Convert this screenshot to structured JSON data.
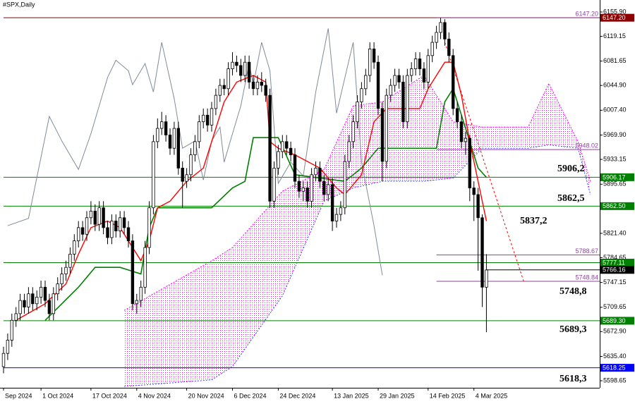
{
  "chart_data": {
    "type": "candlestick",
    "title": "#SPX,Daily",
    "ylim": [
      5588,
      6174
    ],
    "yticks": [
      {
        "value": 6155.9,
        "label": "6155.90"
      },
      {
        "value": 6119.15,
        "label": "6119.15"
      },
      {
        "value": 6081.65,
        "label": "6081.65"
      },
      {
        "value": 6044.9,
        "label": "6044.90"
      },
      {
        "value": 6007.4,
        "label": "6007.40"
      },
      {
        "value": 5969.9,
        "label": "5969.90"
      },
      {
        "value": 5933.15,
        "label": "5933.15"
      },
      {
        "value": 5895.65,
        "label": "5895.65"
      },
      {
        "value": 5821.4,
        "label": "5821.40"
      },
      {
        "value": 5784.65,
        "label": "5784.65"
      },
      {
        "value": 5747.15,
        "label": "5747.15"
      },
      {
        "value": 5709.65,
        "label": "5709.65"
      },
      {
        "value": 5672.9,
        "label": "5672.90"
      },
      {
        "value": 5635.4,
        "label": "5635.40"
      },
      {
        "value": 5598.65,
        "label": "5598.65"
      }
    ],
    "xticks": [
      {
        "value": 0,
        "label": "Sep 2024"
      },
      {
        "value": 9,
        "label": "1 Oct 2024"
      },
      {
        "value": 21,
        "label": "17 Oct 2024"
      },
      {
        "value": 32,
        "label": "4 Nov 2024"
      },
      {
        "value": 44,
        "label": "20 Nov 2024"
      },
      {
        "value": 55,
        "label": "6 Dec 2024"
      },
      {
        "value": 66,
        "label": "24 Dec 2024"
      },
      {
        "value": 79,
        "label": "13 Jan 2025"
      },
      {
        "value": 90,
        "label": "29 Jan 2025"
      },
      {
        "value": 102,
        "label": "14 Feb 2025"
      },
      {
        "value": 113,
        "label": "4 Mar 2025"
      }
    ],
    "ohlc": [
      [
        5620,
        5650,
        5610,
        5640
      ],
      [
        5640,
        5670,
        5630,
        5660
      ],
      [
        5660,
        5700,
        5650,
        5690
      ],
      [
        5690,
        5710,
        5680,
        5700
      ],
      [
        5700,
        5730,
        5690,
        5720
      ],
      [
        5720,
        5730,
        5700,
        5710
      ],
      [
        5710,
        5740,
        5700,
        5730
      ],
      [
        5730,
        5740,
        5705,
        5715
      ],
      [
        5715,
        5735,
        5705,
        5725
      ],
      [
        5725,
        5750,
        5715,
        5740
      ],
      [
        5740,
        5750,
        5710,
        5720
      ],
      [
        5720,
        5730,
        5690,
        5700
      ],
      [
        5700,
        5740,
        5690,
        5730
      ],
      [
        5730,
        5755,
        5720,
        5745
      ],
      [
        5745,
        5770,
        5735,
        5760
      ],
      [
        5760,
        5780,
        5750,
        5770
      ],
      [
        5770,
        5800,
        5760,
        5790
      ],
      [
        5790,
        5820,
        5780,
        5810
      ],
      [
        5810,
        5840,
        5800,
        5830
      ],
      [
        5830,
        5840,
        5810,
        5820
      ],
      [
        5820,
        5855,
        5810,
        5845
      ],
      [
        5845,
        5870,
        5835,
        5855
      ],
      [
        5855,
        5865,
        5825,
        5835
      ],
      [
        5835,
        5870,
        5825,
        5860
      ],
      [
        5860,
        5870,
        5820,
        5830
      ],
      [
        5830,
        5840,
        5805,
        5815
      ],
      [
        5815,
        5850,
        5805,
        5840
      ],
      [
        5840,
        5850,
        5815,
        5825
      ],
      [
        5825,
        5855,
        5815,
        5845
      ],
      [
        5845,
        5855,
        5820,
        5830
      ],
      [
        5830,
        5840,
        5800,
        5810
      ],
      [
        5810,
        5820,
        5705,
        5715
      ],
      [
        5715,
        5730,
        5700,
        5720
      ],
      [
        5720,
        5750,
        5710,
        5740
      ],
      [
        5740,
        5810,
        5730,
        5800
      ],
      [
        5800,
        5870,
        5790,
        5860
      ],
      [
        5860,
        5970,
        5850,
        5960
      ],
      [
        5960,
        5995,
        5950,
        5980
      ],
      [
        5980,
        6005,
        5970,
        5990
      ],
      [
        5990,
        6000,
        5960,
        5970
      ],
      [
        5970,
        5980,
        5940,
        5950
      ],
      [
        5950,
        5990,
        5940,
        5980
      ],
      [
        5980,
        5990,
        5910,
        5920
      ],
      [
        5920,
        5930,
        5860,
        5900
      ],
      [
        5900,
        5920,
        5890,
        5910
      ],
      [
        5910,
        5950,
        5900,
        5940
      ],
      [
        5940,
        5970,
        5930,
        5960
      ],
      [
        5960,
        6000,
        5950,
        5990
      ],
      [
        5990,
        6010,
        5980,
        6000
      ],
      [
        6000,
        6010,
        5975,
        5985
      ],
      [
        5985,
        6020,
        5975,
        6010
      ],
      [
        6010,
        6040,
        6000,
        6030
      ],
      [
        6030,
        6055,
        6020,
        6045
      ],
      [
        6045,
        6055,
        6030,
        6040
      ],
      [
        6040,
        6080,
        6030,
        6070
      ],
      [
        6070,
        6095,
        6060,
        6080
      ],
      [
        6080,
        6090,
        6065,
        6075
      ],
      [
        6075,
        6085,
        6050,
        6060
      ],
      [
        6060,
        6090,
        6050,
        6080
      ],
      [
        6080,
        6090,
        6040,
        6050
      ],
      [
        6050,
        6060,
        6030,
        6040
      ],
      [
        6040,
        6060,
        6030,
        6050
      ],
      [
        6050,
        6065,
        6035,
        6045
      ],
      [
        6045,
        6055,
        6020,
        6030
      ],
      [
        6030,
        6040,
        5860,
        5870
      ],
      [
        5870,
        5930,
        5860,
        5920
      ],
      [
        5920,
        5955,
        5910,
        5945
      ],
      [
        5945,
        5970,
        5935,
        5960
      ],
      [
        5960,
        5970,
        5940,
        5950
      ],
      [
        5950,
        5960,
        5930,
        5940
      ],
      [
        5940,
        5950,
        5890,
        5900
      ],
      [
        5900,
        5910,
        5875,
        5885
      ],
      [
        5885,
        5900,
        5870,
        5890
      ],
      [
        5890,
        5900,
        5860,
        5870
      ],
      [
        5870,
        5920,
        5860,
        5910
      ],
      [
        5910,
        5930,
        5900,
        5920
      ],
      [
        5920,
        5930,
        5890,
        5900
      ],
      [
        5900,
        5910,
        5870,
        5880
      ],
      [
        5880,
        5905,
        5870,
        5895
      ],
      [
        5895,
        5905,
        5825,
        5840
      ],
      [
        5840,
        5860,
        5830,
        5850
      ],
      [
        5850,
        5870,
        5840,
        5860
      ],
      [
        5860,
        5940,
        5850,
        5930
      ],
      [
        5930,
        5970,
        5920,
        5960
      ],
      [
        5960,
        6000,
        5950,
        5990
      ],
      [
        5990,
        6030,
        5980,
        6020
      ],
      [
        6020,
        6050,
        6010,
        6040
      ],
      [
        6040,
        6070,
        6030,
        6060
      ],
      [
        6060,
        6110,
        6050,
        6100
      ],
      [
        6100,
        6110,
        6070,
        6080
      ],
      [
        6080,
        6090,
        6000,
        6010
      ],
      [
        6010,
        6020,
        5900,
        5930
      ],
      [
        5930,
        6040,
        5920,
        6030
      ],
      [
        6030,
        6055,
        6020,
        6045
      ],
      [
        6045,
        6070,
        6035,
        6060
      ],
      [
        6060,
        6070,
        6040,
        6050
      ],
      [
        6050,
        6060,
        5980,
        5990
      ],
      [
        5990,
        6070,
        5980,
        6060
      ],
      [
        6060,
        6080,
        6050,
        6070
      ],
      [
        6070,
        6095,
        6060,
        6085
      ],
      [
        6085,
        6095,
        6060,
        6070
      ],
      [
        6070,
        6080,
        6040,
        6050
      ],
      [
        6050,
        6100,
        6040,
        6090
      ],
      [
        6090,
        6120,
        6080,
        6110
      ],
      [
        6110,
        6135,
        6100,
        6125
      ],
      [
        6125,
        6147,
        6115,
        6140
      ],
      [
        6140,
        6145,
        6105,
        6115
      ],
      [
        6115,
        6125,
        6080,
        6090
      ],
      [
        6090,
        6100,
        6000,
        6010
      ],
      [
        6010,
        6020,
        5980,
        5990
      ],
      [
        5990,
        6000,
        5950,
        5960
      ],
      [
        5960,
        5975,
        5940,
        5965
      ],
      [
        5965,
        5970,
        5870,
        5890
      ],
      [
        5890,
        5900,
        5840,
        5880
      ],
      [
        5880,
        5890,
        5765,
        5845
      ],
      [
        5845,
        5850,
        5710,
        5740
      ],
      [
        5740,
        5790,
        5672,
        5766
      ]
    ],
    "cloud": {
      "color_a": "#ff00ff",
      "color_b": "#4040ff",
      "x": [
        29,
        50,
        55,
        67,
        77,
        84,
        91,
        101,
        108,
        115,
        126,
        131,
        138,
        141
      ],
      "span_a": [
        5705,
        5780,
        5800,
        5885,
        5918,
        6014,
        6020,
        6060,
        5990,
        5982,
        5982,
        6048,
        5960,
        5900
      ],
      "span_b": [
        5590,
        5600,
        5620,
        5727,
        5870,
        5890,
        5900,
        5900,
        5905,
        5950,
        5950,
        5955,
        5950,
        5880
      ]
    },
    "lines": [
      {
        "color": "#808a98",
        "width": 1,
        "x": [
          1,
          6,
          11,
          14,
          18,
          21,
          25,
          27,
          30,
          31,
          34,
          36,
          38,
          41,
          43,
          46,
          48,
          50,
          52,
          53,
          55,
          57,
          59,
          60,
          62,
          64,
          66,
          69,
          72,
          75,
          78,
          80,
          84,
          86,
          89,
          91
        ],
        "values": [
          5833,
          5844,
          5998,
          5961,
          5918,
          5972,
          6057,
          6083,
          6067,
          6046,
          6078,
          6035,
          6110,
          6025,
          5950,
          5961,
          5902,
          5961,
          5982,
          5929,
          5972,
          6014,
          6078,
          6046,
          6110,
          6067,
          5897,
          5929,
          5908,
          6035,
          6131,
          6003,
          6110,
          5929,
          5833,
          5758
        ]
      },
      {
        "color": "#008000",
        "width": 1.6,
        "x": [
          10,
          18,
          22,
          28,
          33,
          35,
          37,
          50,
          55,
          58,
          60,
          66,
          70,
          82,
          86,
          90,
          104,
          106,
          108,
          110,
          112,
          114,
          116
        ],
        "values": [
          5690,
          5740,
          5770,
          5770,
          5760,
          5830,
          5860,
          5860,
          5890,
          5900,
          5966,
          5966,
          5910,
          5900,
          5920,
          5950,
          5950,
          6020,
          6040,
          6000,
          5960,
          5920,
          5906
        ]
      },
      {
        "color": "#ff0000",
        "width": 1.4,
        "x": [
          3,
          10,
          15,
          18,
          21,
          25,
          28,
          31,
          33,
          35,
          37,
          40,
          44,
          48,
          50,
          53,
          56,
          60,
          63,
          64,
          66,
          70,
          76,
          80,
          82,
          86,
          89,
          92,
          96,
          100,
          102,
          104,
          106,
          108,
          110,
          112,
          114,
          116
        ],
        "values": [
          5690,
          5715,
          5745,
          5790,
          5830,
          5840,
          5830,
          5800,
          5780,
          5810,
          5860,
          5870,
          5900,
          5920,
          5960,
          6020,
          6050,
          6060,
          6050,
          5960,
          5950,
          5940,
          5920,
          5890,
          5880,
          5910,
          5990,
          6010,
          6010,
          6010,
          6040,
          6060,
          6080,
          6080,
          6030,
          5960,
          5900,
          5840
        ]
      },
      {
        "color": "#ff0000",
        "width": 1,
        "dash": true,
        "x": [
          106,
          125
        ],
        "values": [
          6110,
          5748
        ]
      }
    ],
    "levels": [
      {
        "value": 6147.2,
        "label": "6147.20",
        "color": "#8b0000",
        "start": 0,
        "style": "axis"
      },
      {
        "value": 6147.2,
        "label": "6147.20",
        "color": "#9040a0",
        "start": 104,
        "style": "inside"
      },
      {
        "value": 5948.02,
        "label": "5948.02",
        "color": "#9040a0",
        "start": 104,
        "style": "inside"
      },
      {
        "value": 5906.17,
        "label": "5906.17",
        "color": "#008000",
        "start": 0,
        "style": "axis"
      },
      {
        "value": 5862.5,
        "label": "5862.50",
        "color": "#008000",
        "start": 0,
        "style": "axis"
      },
      {
        "value": 5788.67,
        "label": "5788.67",
        "color": "#9040a0",
        "start": 104,
        "style": "inside"
      },
      {
        "value": 5777.11,
        "label": "5777.11",
        "color": "#008000",
        "start": 0,
        "style": "axis"
      },
      {
        "value": 5766.16,
        "label": "5766.16",
        "color": "#000000",
        "start": 116,
        "style": "axis"
      },
      {
        "value": 5748.84,
        "label": "5748.84",
        "color": "#9040a0",
        "start": 104,
        "style": "inside"
      },
      {
        "value": 5689.3,
        "label": "5689.30",
        "color": "#008000",
        "start": 0,
        "style": "axis"
      },
      {
        "value": 5618.25,
        "label": "5618.25",
        "color": "#0000ff",
        "start": 0,
        "style": "axis"
      }
    ],
    "annotations": [
      "5906,2",
      "5862,5",
      "5837,2",
      "5748,8",
      "5689,3",
      "5618,3"
    ]
  }
}
